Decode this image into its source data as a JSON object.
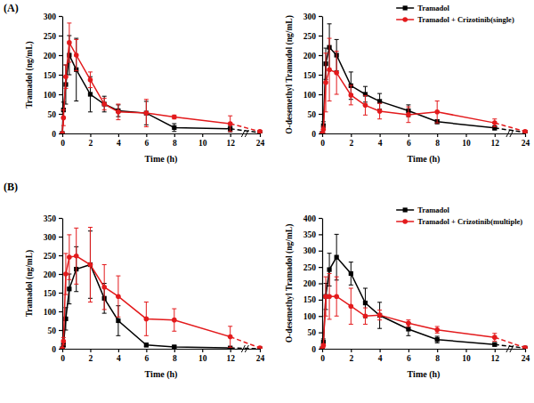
{
  "chart_data": [
    {
      "type": "line",
      "annotations": [
        "(A)"
      ],
      "x_label": "Time (h)",
      "y_label": "Tramadol (ng/mL)",
      "x": [
        0,
        0.083,
        0.25,
        0.5,
        1,
        2,
        3,
        4,
        6,
        8,
        12,
        24
      ],
      "xlim": [
        0,
        24
      ],
      "xticks": [
        0,
        2,
        4,
        6,
        8,
        10,
        12,
        24
      ],
      "ylim": [
        0,
        300
      ],
      "yticks": [
        0,
        50,
        100,
        150,
        200,
        250,
        300
      ],
      "legend": false,
      "series": [
        {
          "name": "Tramadol",
          "color": "#000000",
          "marker": "square",
          "line_style": "solid",
          "values": [
            0,
            60,
            125,
            200,
            163,
            100,
            75,
            58,
            52,
            15,
            12,
            2
          ],
          "errors": [
            0,
            20,
            50,
            50,
            80,
            45,
            20,
            15,
            30,
            10,
            8,
            2
          ]
        },
        {
          "name": "Tramadol + Crizotinib(single)",
          "color": "#e31a1c",
          "marker": "circle",
          "line_style": "solid",
          "values": [
            0,
            40,
            145,
            232,
            200,
            137,
            75,
            55,
            52,
            42,
            25,
            5
          ],
          "errors": [
            0,
            20,
            30,
            50,
            40,
            20,
            15,
            20,
            35,
            5,
            20,
            3
          ]
        }
      ]
    },
    {
      "type": "line",
      "x_label": "Time (h)",
      "y_label": "O-desemethyl Tramadol (ng/mL)",
      "x": [
        0,
        0.083,
        0.25,
        0.5,
        1,
        2,
        3,
        4,
        6,
        8,
        12,
        24
      ],
      "xlim": [
        0,
        24
      ],
      "xticks": [
        0,
        2,
        4,
        6,
        8,
        10,
        12,
        24
      ],
      "ylim": [
        0,
        300
      ],
      "yticks": [
        0,
        50,
        100,
        150,
        200,
        250,
        300
      ],
      "legend": "upper right",
      "series": [
        {
          "name": "Tramadol",
          "color": "#000000",
          "marker": "square",
          "line_style": "solid",
          "values": [
            0,
            20,
            178,
            220,
            200,
            122,
            100,
            82,
            58,
            30,
            14,
            3
          ],
          "errors": [
            0,
            10,
            40,
            60,
            40,
            35,
            20,
            20,
            15,
            5,
            5,
            2
          ]
        },
        {
          "name": "Tramadol + Crizotinib(single)",
          "color": "#e31a1c",
          "marker": "circle",
          "line_style": "solid",
          "values": [
            0,
            10,
            130,
            163,
            155,
            98,
            72,
            57,
            48,
            55,
            27,
            5
          ],
          "errors": [
            0,
            8,
            75,
            80,
            55,
            25,
            25,
            20,
            20,
            28,
            10,
            3
          ]
        }
      ]
    },
    {
      "type": "line",
      "annotations": [
        "(B)"
      ],
      "x_label": "Time (h)",
      "y_label": "Tramadol (ng/mL)",
      "x": [
        0,
        0.083,
        0.25,
        0.5,
        1,
        2,
        3,
        4,
        6,
        8,
        12,
        24
      ],
      "xlim": [
        0,
        24
      ],
      "xticks": [
        0,
        2,
        4,
        6,
        8,
        10,
        12,
        24
      ],
      "ylim": [
        0,
        350
      ],
      "yticks": [
        0,
        50,
        100,
        150,
        200,
        250,
        300,
        350
      ],
      "legend": false,
      "series": [
        {
          "name": "Tramadol",
          "color": "#000000",
          "marker": "square",
          "line_style": "solid",
          "values": [
            0,
            10,
            80,
            160,
            213,
            225,
            135,
            75,
            10,
            5,
            2,
            0
          ],
          "errors": [
            0,
            5,
            30,
            40,
            60,
            90,
            40,
            40,
            5,
            3,
            2,
            0
          ]
        },
        {
          "name": "Tramadol + Crizotinib(multiple)",
          "color": "#e31a1c",
          "marker": "circle",
          "line_style": "solid",
          "values": [
            0,
            20,
            200,
            245,
            248,
            225,
            165,
            140,
            80,
            77,
            32,
            2
          ],
          "errors": [
            0,
            10,
            55,
            60,
            75,
            100,
            60,
            55,
            45,
            30,
            28,
            2
          ]
        }
      ]
    },
    {
      "type": "line",
      "x_label": "Time (h)",
      "y_label": "O-desemethyl Tramadol (ng/mL)",
      "x": [
        0,
        0.083,
        0.25,
        0.5,
        1,
        2,
        3,
        4,
        6,
        8,
        12,
        24
      ],
      "xlim": [
        0,
        24
      ],
      "xticks": [
        0,
        2,
        4,
        6,
        8,
        10,
        12,
        24
      ],
      "ylim": [
        0,
        400
      ],
      "yticks": [
        0,
        50,
        100,
        150,
        200,
        250,
        300,
        350,
        400
      ],
      "legend": "upper right",
      "series": [
        {
          "name": "Tramadol",
          "color": "#000000",
          "marker": "square",
          "line_style": "solid",
          "values": [
            0,
            20,
            160,
            242,
            280,
            230,
            140,
            102,
            60,
            28,
            13,
            2
          ],
          "errors": [
            0,
            10,
            40,
            50,
            70,
            35,
            45,
            40,
            20,
            10,
            5,
            2
          ]
        },
        {
          "name": "Tramadol + Crizotinib(multiple)",
          "color": "#e31a1c",
          "marker": "circle",
          "line_style": "solid",
          "values": [
            0,
            10,
            160,
            160,
            160,
            130,
            100,
            103,
            78,
            58,
            35,
            3
          ],
          "errors": [
            0,
            5,
            60,
            70,
            60,
            55,
            25,
            15,
            10,
            10,
            12,
            2
          ]
        }
      ]
    }
  ]
}
